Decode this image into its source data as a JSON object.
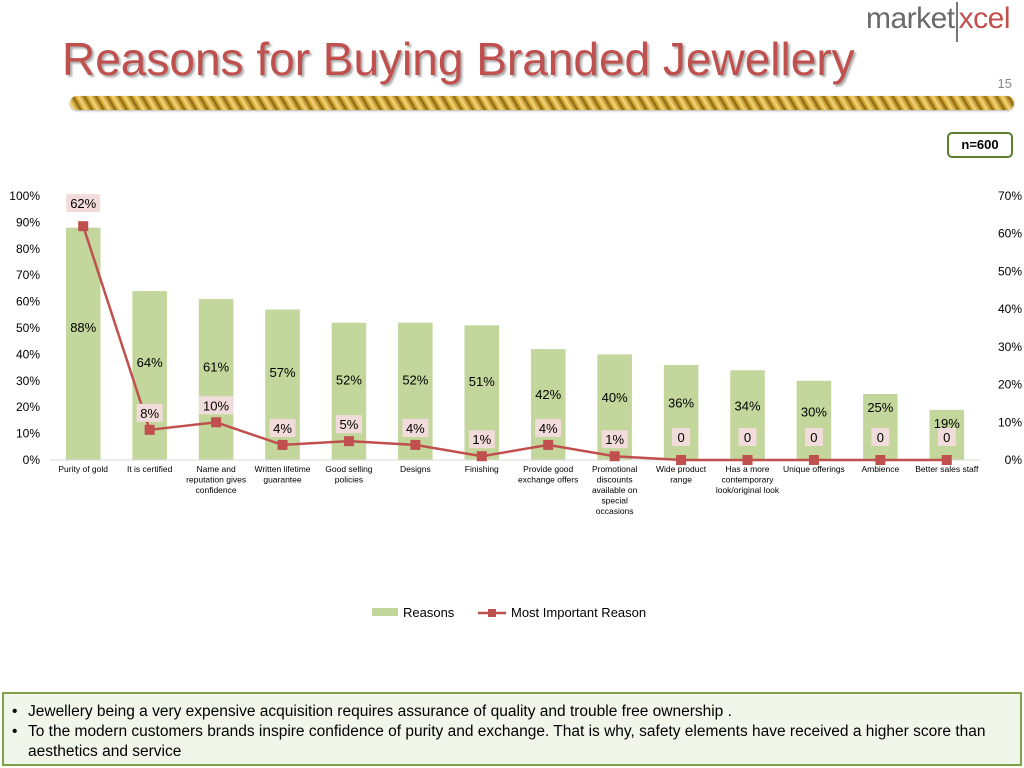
{
  "slide": {
    "logo_left": "market",
    "logo_right": "xcel",
    "title": "Reasons for Buying Branded Jewellery",
    "page_number": "15",
    "sample_note": "n=600"
  },
  "chart_data": {
    "type": "bar",
    "categories": [
      "Purity of gold",
      "It is certified",
      "Name and reputation gives confidence",
      "Written lifetime guarantee",
      "Good selling policies",
      "Designs",
      "Finishing",
      "Provide good exchange offers",
      "Promotional discounts available on special occasions",
      "Wide product range",
      "Has a more contemporary look/original look",
      "Unique offerings",
      "Ambience",
      "Better sales staff"
    ],
    "category_lines": [
      [
        "Purity of gold"
      ],
      [
        "It is certified"
      ],
      [
        "Name and",
        "reputation gives",
        "confidence"
      ],
      [
        "Written lifetime",
        "guarantee"
      ],
      [
        "Good selling",
        "policies"
      ],
      [
        "Designs"
      ],
      [
        "Finishing"
      ],
      [
        "Provide good",
        "exchange offers"
      ],
      [
        "Promotional",
        "discounts",
        "available on",
        "special",
        "occasions"
      ],
      [
        "Wide product",
        "range"
      ],
      [
        "Has a more",
        "contemporary",
        "look/original look"
      ],
      [
        "Unique offerings"
      ],
      [
        "Ambience"
      ],
      [
        "Better sales staff"
      ]
    ],
    "series": [
      {
        "name": "Reasons",
        "type": "bar",
        "axis": "left",
        "color": "#c3d69b",
        "values": [
          88,
          64,
          61,
          57,
          52,
          52,
          51,
          42,
          40,
          36,
          34,
          30,
          25,
          19
        ],
        "labels": [
          "88%",
          "64%",
          "61%",
          "57%",
          "52%",
          "52%",
          "51%",
          "42%",
          "40%",
          "36%",
          "34%",
          "30%",
          "25%",
          "19%"
        ]
      },
      {
        "name": "Most Important Reason",
        "type": "line",
        "axis": "right",
        "color": "#c0504d",
        "values": [
          62,
          8,
          10,
          4,
          5,
          4,
          1,
          4,
          1,
          0,
          0,
          0,
          0,
          0
        ],
        "labels": [
          "62%",
          "8%",
          "10%",
          "4%",
          "5%",
          "4%",
          "1%",
          "4%",
          "1%",
          "0",
          "0",
          "0",
          "0",
          "0"
        ]
      }
    ],
    "left_axis": {
      "ylim": [
        0,
        100
      ],
      "ticks": [
        "0%",
        "10%",
        "20%",
        "30%",
        "40%",
        "50%",
        "60%",
        "70%",
        "80%",
        "90%",
        "100%"
      ]
    },
    "right_axis": {
      "ylim": [
        0,
        70
      ],
      "ticks": [
        "0%",
        "10%",
        "20%",
        "30%",
        "40%",
        "50%",
        "60%",
        "70%"
      ]
    },
    "grid": false,
    "legend_position": "bottom"
  },
  "footer": {
    "bullets": [
      "Jewellery being a very expensive acquisition requires assurance of quality and trouble free ownership .",
      "To the modern customers brands inspire confidence  of purity and exchange. That is why, safety elements have received a higher score than aesthetics and service"
    ]
  }
}
